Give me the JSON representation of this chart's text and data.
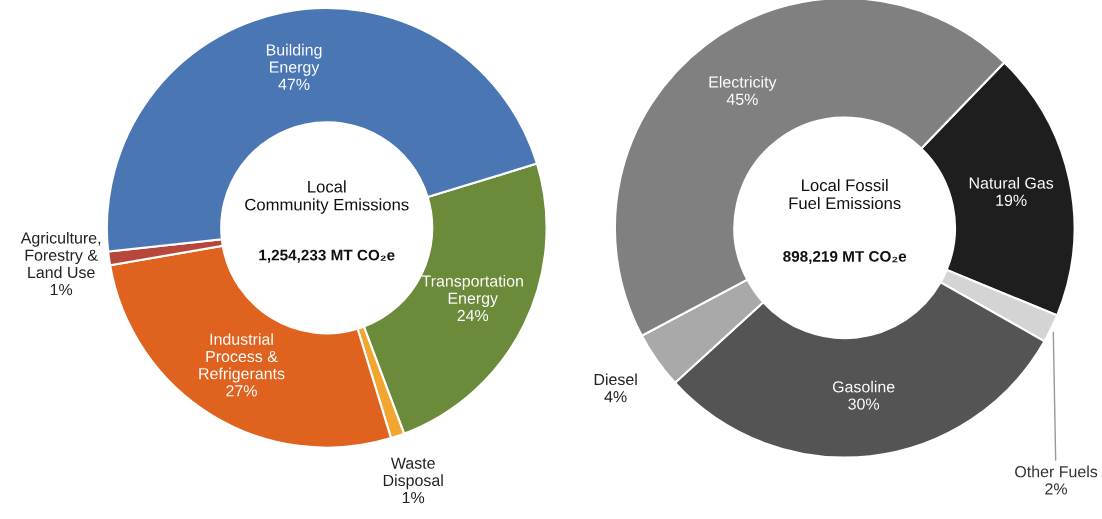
{
  "chart_data": [
    {
      "type": "donut",
      "title": "Local\nCommunity Emissions",
      "subtitle": "1,254,233 MT CO₂e",
      "categories": [
        "Transportation\nEnergy",
        "Waste\nDisposal",
        "Industrial\nProcess &\nRefrigerants",
        "Agriculture,\nForestry &\nLand Use",
        "Building\nEnergy"
      ],
      "values": [
        24,
        1,
        27,
        1,
        47
      ],
      "colors": [
        "#6b8a3a",
        "#f2a530",
        "#e0621f",
        "#b5473b",
        "#4a77b4"
      ],
      "value_labels": [
        "24%",
        "1%",
        "27%",
        "1%",
        "47%"
      ]
    },
    {
      "type": "donut",
      "title": "Local Fossil\nFuel Emissions",
      "subtitle": "898,219 MT CO₂e",
      "categories": [
        "Natural Gas",
        "Other Fuels",
        "Gasoline",
        "Diesel",
        "Electricity"
      ],
      "values": [
        19,
        2,
        30,
        4,
        45
      ],
      "colors": [
        "#1e1e1e",
        "#d4d4d4",
        "#545454",
        "#a9a9a9",
        "#808080"
      ],
      "value_labels": [
        "19%",
        "2%",
        "30%",
        "4%",
        "45%"
      ]
    }
  ]
}
